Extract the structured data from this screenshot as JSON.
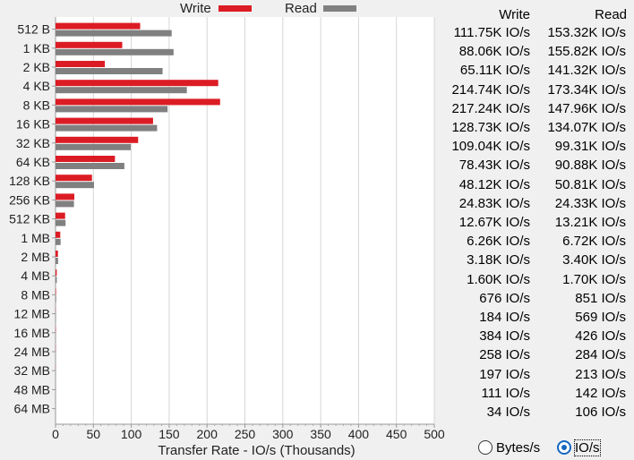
{
  "legend": {
    "write_label": "Write",
    "read_label": "Read",
    "write_color": "#dc1c24",
    "read_color": "#808080"
  },
  "table": {
    "write_header": "Write",
    "read_header": "Read",
    "rows": [
      {
        "size": "512 B",
        "write": "111.75K IO/s",
        "read": "153.32K IO/s"
      },
      {
        "size": "1 KB",
        "write": "88.06K IO/s",
        "read": "155.82K IO/s"
      },
      {
        "size": "2 KB",
        "write": "65.11K IO/s",
        "read": "141.32K IO/s"
      },
      {
        "size": "4 KB",
        "write": "214.74K IO/s",
        "read": "173.34K IO/s"
      },
      {
        "size": "8 KB",
        "write": "217.24K IO/s",
        "read": "147.96K IO/s"
      },
      {
        "size": "16 KB",
        "write": "128.73K IO/s",
        "read": "134.07K IO/s"
      },
      {
        "size": "32 KB",
        "write": "109.04K IO/s",
        "read": "99.31K IO/s"
      },
      {
        "size": "64 KB",
        "write": "78.43K IO/s",
        "read": "90.88K IO/s"
      },
      {
        "size": "128 KB",
        "write": "48.12K IO/s",
        "read": "50.81K IO/s"
      },
      {
        "size": "256 KB",
        "write": "24.83K IO/s",
        "read": "24.33K IO/s"
      },
      {
        "size": "512 KB",
        "write": "12.67K IO/s",
        "read": "13.21K IO/s"
      },
      {
        "size": "1 MB",
        "write": "6.26K IO/s",
        "read": "6.72K IO/s"
      },
      {
        "size": "2 MB",
        "write": "3.18K IO/s",
        "read": "3.40K IO/s"
      },
      {
        "size": "4 MB",
        "write": "1.60K IO/s",
        "read": "1.70K IO/s"
      },
      {
        "size": "8 MB",
        "write": "676 IO/s",
        "read": "851 IO/s"
      },
      {
        "size": "12 MB",
        "write": "184 IO/s",
        "read": "569 IO/s"
      },
      {
        "size": "16 MB",
        "write": "384 IO/s",
        "read": "426 IO/s"
      },
      {
        "size": "24 MB",
        "write": "258 IO/s",
        "read": "284 IO/s"
      },
      {
        "size": "32 MB",
        "write": "197 IO/s",
        "read": "213 IO/s"
      },
      {
        "size": "48 MB",
        "write": "111 IO/s",
        "read": "142 IO/s"
      },
      {
        "size": "64 MB",
        "write": "34 IO/s",
        "read": "106 IO/s"
      }
    ]
  },
  "chart_data": {
    "type": "bar",
    "orientation": "horizontal",
    "categories": [
      "512 B",
      "1 KB",
      "2 KB",
      "4 KB",
      "8 KB",
      "16 KB",
      "32 KB",
      "64 KB",
      "128 KB",
      "256 KB",
      "512 KB",
      "1 MB",
      "2 MB",
      "4 MB",
      "8 MB",
      "12 MB",
      "16 MB",
      "24 MB",
      "32 MB",
      "48 MB",
      "64 MB"
    ],
    "series": [
      {
        "name": "Write",
        "color": "#dc1c24",
        "values": [
          111.75,
          88.06,
          65.11,
          214.74,
          217.24,
          128.73,
          109.04,
          78.43,
          48.12,
          24.83,
          12.67,
          6.26,
          3.18,
          1.6,
          0.676,
          0.184,
          0.384,
          0.258,
          0.197,
          0.111,
          0.034
        ]
      },
      {
        "name": "Read",
        "color": "#808080",
        "values": [
          153.32,
          155.82,
          141.32,
          173.34,
          147.96,
          134.07,
          99.31,
          90.88,
          50.81,
          24.33,
          13.21,
          6.72,
          3.4,
          1.7,
          0.851,
          0.569,
          0.426,
          0.284,
          0.213,
          0.142,
          0.106
        ]
      }
    ],
    "xlabel": "Transfer Rate - IO/s (Thousands)",
    "ylabel": "",
    "xlim": [
      0,
      500
    ],
    "x_ticks": [
      "0",
      "50",
      "100",
      "150",
      "200",
      "250",
      "300",
      "350",
      "400",
      "450",
      "500"
    ],
    "grid": true,
    "legend_position": "top"
  },
  "units": {
    "bytes_label": "Bytes/s",
    "ios_label": "IO/s",
    "selected": "IO/s"
  }
}
